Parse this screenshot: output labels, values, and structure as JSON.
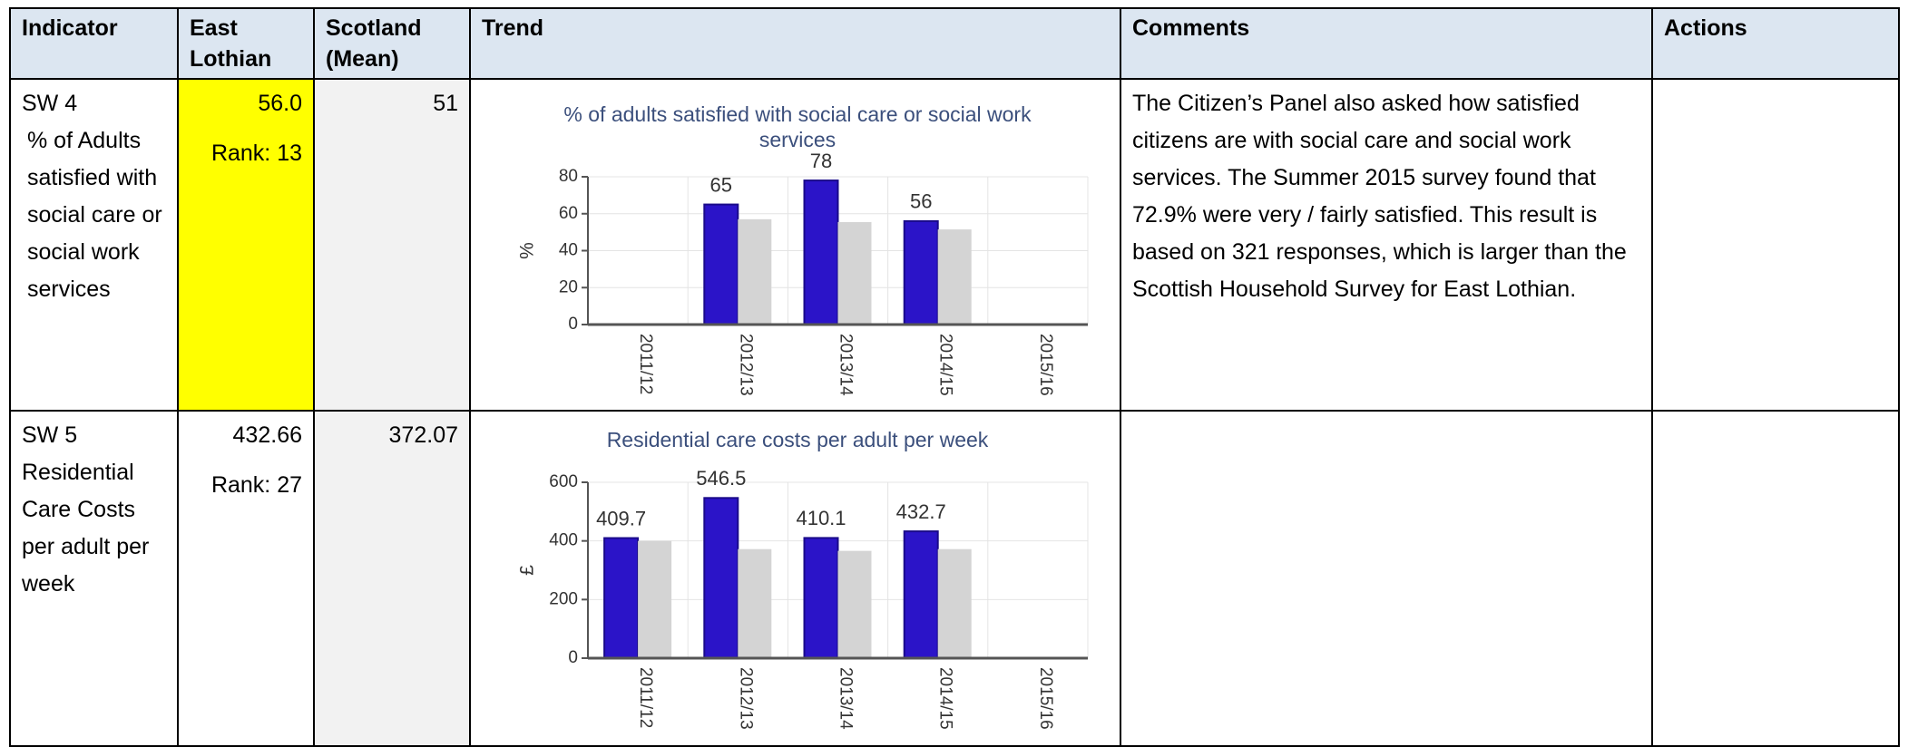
{
  "table": {
    "headers": [
      "Indicator",
      "East Lothian",
      "Scotland (Mean)",
      "Trend",
      "Comments",
      "Actions"
    ],
    "rows": [
      {
        "code": "SW 4",
        "name": "% of Adults satisfied with social care or social work services",
        "east_lothian": "56.0",
        "rank": "Rank: 13",
        "scotland": "51",
        "trend": {
          "type": "bar",
          "title": "% of adults satisfied with social care or social work services",
          "ylabel": "%",
          "categories": [
            "2011/12",
            "2012/13",
            "2013/14",
            "2014/15",
            "2015/16"
          ],
          "series": [
            {
              "color": "#2b14c8",
              "values": [
                null,
                65,
                78,
                56,
                null
              ]
            },
            {
              "color": "#d4d4d4",
              "values": [
                null,
                57,
                55.5,
                51.5,
                null
              ]
            }
          ],
          "ylim": [
            0,
            80
          ],
          "yticks": [
            0,
            20,
            40,
            60,
            80
          ],
          "grid": true
        },
        "comments": "The Citizen’s Panel also asked how satisfied citizens are with social care and social work services. The Summer 2015 survey found that 72.9% were very / fairly satisfied. This result is based on 321 responses, which is larger than the Scottish Household Survey for East Lothian."
      },
      {
        "code": "SW 5",
        "name": "Residential Care Costs per adult per week",
        "east_lothian": "432.66",
        "rank": "Rank: 27",
        "scotland": "372.07",
        "trend": {
          "type": "bar",
          "title": "Residential care costs per adult per week",
          "ylabel": "£",
          "categories": [
            "2011/12",
            "2012/13",
            "2013/14",
            "2014/15",
            "2015/16"
          ],
          "series": [
            {
              "color": "#2b14c8",
              "values": [
                409.7,
                546.5,
                410.1,
                432.7,
                null
              ]
            },
            {
              "color": "#d4d4d4",
              "values": [
                400,
                372,
                366,
                372,
                null
              ]
            }
          ],
          "ylim": [
            0,
            600
          ],
          "yticks": [
            0,
            200,
            400,
            600
          ],
          "grid": true
        }
      }
    ]
  }
}
